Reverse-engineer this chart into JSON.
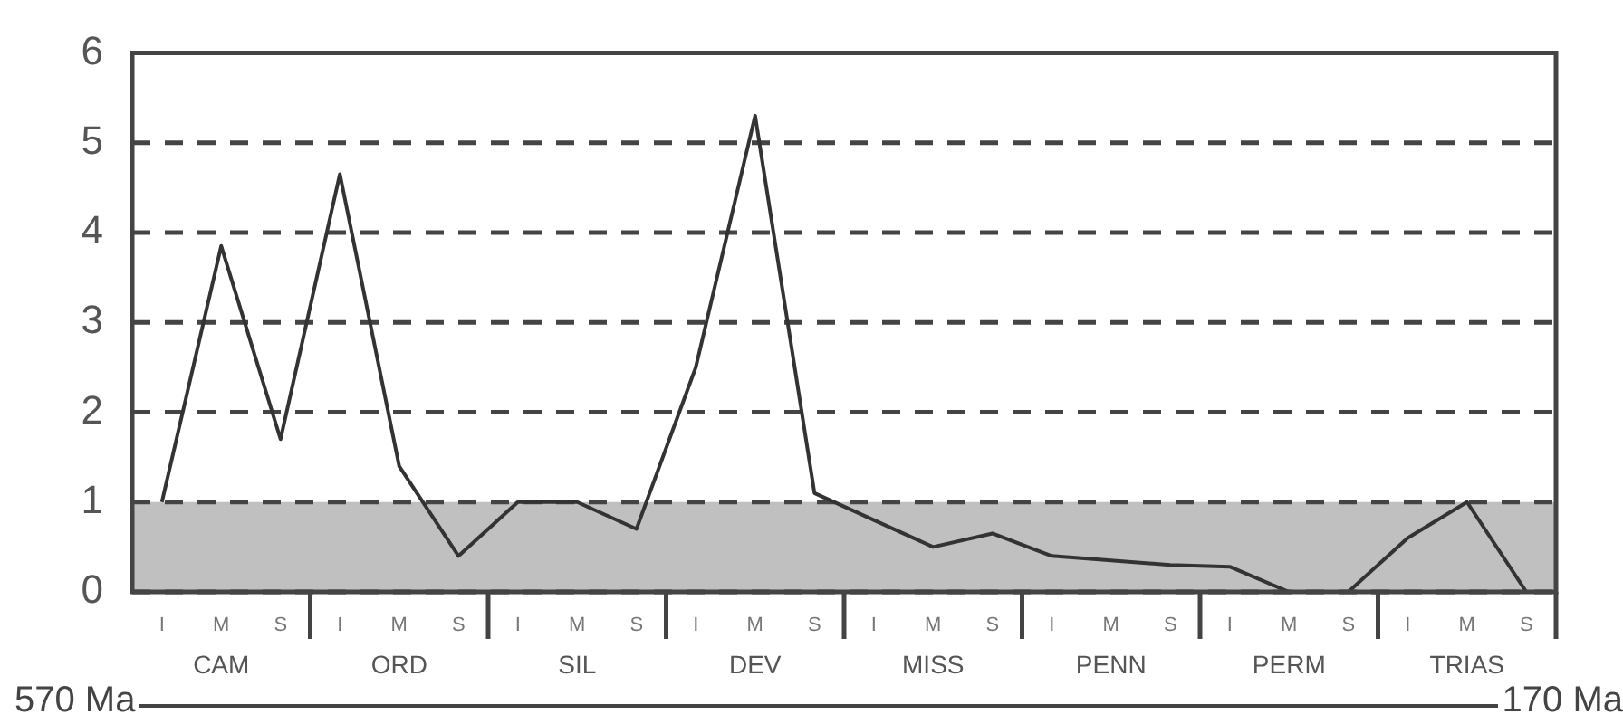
{
  "chart_data": {
    "type": "line",
    "categories": [
      "I",
      "M",
      "S",
      "I",
      "M",
      "S",
      "I",
      "M",
      "S",
      "I",
      "M",
      "S",
      "I",
      "M",
      "S",
      "I",
      "M",
      "S",
      "I",
      "M",
      "S",
      "I",
      "M",
      "S"
    ],
    "series": [
      {
        "color": "#333333",
        "values": [
          1.0,
          3.85,
          1.7,
          4.65,
          1.4,
          0.4,
          1.0,
          1.0,
          0.7,
          2.5,
          5.3,
          1.1,
          0.8,
          0.5,
          0.65,
          0.4,
          0.35,
          0.3,
          0.28,
          0,
          0,
          0.6,
          1.0,
          0
        ]
      }
    ],
    "ylim": [
      0,
      6
    ],
    "yticks": [
      0,
      1,
      2,
      3,
      4,
      5,
      6
    ],
    "grid": "y",
    "marker": "none",
    "line_style": "solid",
    "bands": [
      {
        "axis": "y",
        "from": 0,
        "to": 1,
        "color": "#c0c0c0"
      }
    ],
    "annotations": [
      "570 Ma",
      "170 Ma",
      "CAM",
      "ORD",
      "SIL",
      "DEV",
      "MISS",
      "PENN",
      "PERM",
      "TRIAS"
    ]
  }
}
